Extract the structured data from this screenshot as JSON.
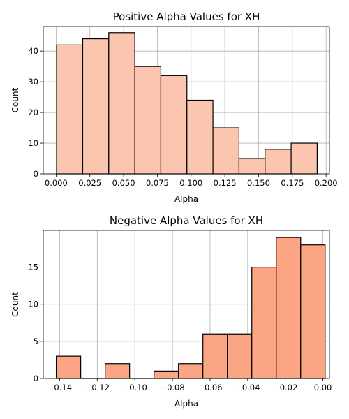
{
  "chart_data": [
    {
      "type": "bar",
      "title": "Positive Alpha Values for XH",
      "xlabel": "Alpha",
      "ylabel": "Count",
      "color": "#fcc5b0",
      "grid": true,
      "xlim": [
        -0.0095,
        0.2025
      ],
      "ylim": [
        0,
        48
      ],
      "xticks": [
        0.0,
        0.025,
        0.05,
        0.075,
        0.1,
        0.125,
        0.15,
        0.175,
        0.2
      ],
      "xtick_labels": [
        "0.000",
        "0.025",
        "0.050",
        "0.075",
        "0.100",
        "0.125",
        "0.150",
        "0.175",
        "0.200"
      ],
      "yticks": [
        0,
        10,
        20,
        30,
        40
      ],
      "ytick_labels": [
        "0",
        "10",
        "20",
        "30",
        "40"
      ],
      "bins": [
        {
          "start": 0.0004,
          "end": 0.0197,
          "count": 42
        },
        {
          "start": 0.0197,
          "end": 0.039,
          "count": 44
        },
        {
          "start": 0.039,
          "end": 0.0583,
          "count": 46
        },
        {
          "start": 0.0583,
          "end": 0.0776,
          "count": 35
        },
        {
          "start": 0.0776,
          "end": 0.0969,
          "count": 32
        },
        {
          "start": 0.0969,
          "end": 0.1162,
          "count": 24
        },
        {
          "start": 0.1162,
          "end": 0.1355,
          "count": 15
        },
        {
          "start": 0.1355,
          "end": 0.1548,
          "count": 5
        },
        {
          "start": 0.1548,
          "end": 0.1741,
          "count": 8
        },
        {
          "start": 0.1741,
          "end": 0.1934,
          "count": 10
        }
      ]
    },
    {
      "type": "bar",
      "title": "Negative Alpha Values for XH",
      "xlabel": "Alpha",
      "ylabel": "Count",
      "color": "#fca584",
      "grid": true,
      "xlim": [
        -0.1487,
        0.0035
      ],
      "ylim": [
        0,
        19.95
      ],
      "xticks": [
        -0.14,
        -0.12,
        -0.1,
        -0.08,
        -0.06,
        -0.04,
        -0.02,
        0.0
      ],
      "xtick_labels": [
        "−0.14",
        "−0.12",
        "−0.10",
        "−0.08",
        "−0.06",
        "−0.04",
        "−0.02",
        "0.00"
      ],
      "yticks": [
        0,
        5,
        10,
        15
      ],
      "ytick_labels": [
        "0",
        "5",
        "10",
        "15"
      ],
      "bins": [
        {
          "start": -0.1418,
          "end": -0.1288,
          "count": 3
        },
        {
          "start": -0.1288,
          "end": -0.1158,
          "count": 0
        },
        {
          "start": -0.1158,
          "end": -0.1028,
          "count": 2
        },
        {
          "start": -0.1028,
          "end": -0.0898,
          "count": 0
        },
        {
          "start": -0.0898,
          "end": -0.0768,
          "count": 1
        },
        {
          "start": -0.0768,
          "end": -0.0638,
          "count": 2
        },
        {
          "start": -0.0638,
          "end": -0.0508,
          "count": 6
        },
        {
          "start": -0.0508,
          "end": -0.0378,
          "count": 6
        },
        {
          "start": -0.0378,
          "end": -0.0248,
          "count": 15
        },
        {
          "start": -0.0248,
          "end": -0.0118,
          "count": 19
        },
        {
          "start": -0.0118,
          "end": 0.0012,
          "count": 18
        }
      ]
    }
  ]
}
